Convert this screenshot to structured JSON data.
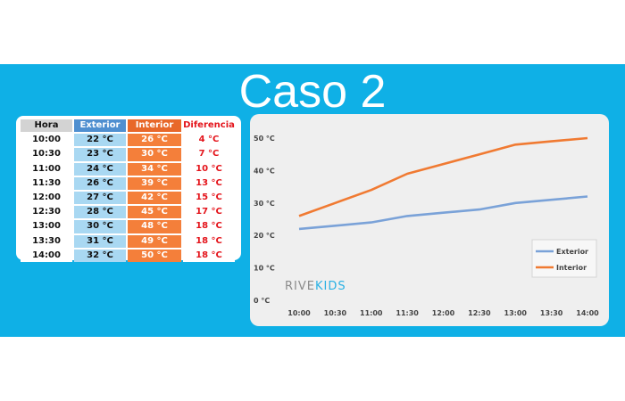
{
  "title": "Caso 2",
  "logo": {
    "part1": "RIVE",
    "part2": "KIDS"
  },
  "table": {
    "headers": [
      "Hora",
      "Exterior",
      "Interior",
      "Diferencia"
    ],
    "rows": [
      [
        "10:00",
        "22 °C",
        "26 °C",
        "4 °C"
      ],
      [
        "10:30",
        "23 °C",
        "30 °C",
        "7 °C"
      ],
      [
        "11:00",
        "24 °C",
        "34 °C",
        "10 °C"
      ],
      [
        "11:30",
        "26 °C",
        "39 °C",
        "13 °C"
      ],
      [
        "12:00",
        "27 °C",
        "42 °C",
        "15 °C"
      ],
      [
        "12:30",
        "28 °C",
        "45 °C",
        "17 °C"
      ],
      [
        "13:00",
        "30 °C",
        "48 °C",
        "18 °C"
      ],
      [
        "13:30",
        "31 °C",
        "49 °C",
        "18 °C"
      ],
      [
        "14:00",
        "32 °C",
        "50 °C",
        "18 °C"
      ]
    ]
  },
  "chart_data": {
    "type": "line",
    "title": "",
    "xlabel": "",
    "ylabel": "",
    "categories": [
      "10:00",
      "10:30",
      "11:00",
      "11:30",
      "12:00",
      "12:30",
      "13:00",
      "13:30",
      "14:00"
    ],
    "series": [
      {
        "name": "Exterior",
        "color": "#7aa2d8",
        "values": [
          22,
          23,
          24,
          26,
          27,
          28,
          30,
          31,
          32
        ]
      },
      {
        "name": "Interior",
        "color": "#f07a32",
        "values": [
          26,
          30,
          34,
          39,
          42,
          45,
          48,
          49,
          50
        ]
      }
    ],
    "ylim": [
      0,
      50
    ],
    "yticks": [
      0,
      10,
      20,
      30,
      40,
      50
    ],
    "ytick_labels": [
      "0 °C",
      "10 °C",
      "20 °C",
      "30 °C",
      "40 °C",
      "50 °C"
    ],
    "grid": false,
    "legend": "bottom-right"
  }
}
